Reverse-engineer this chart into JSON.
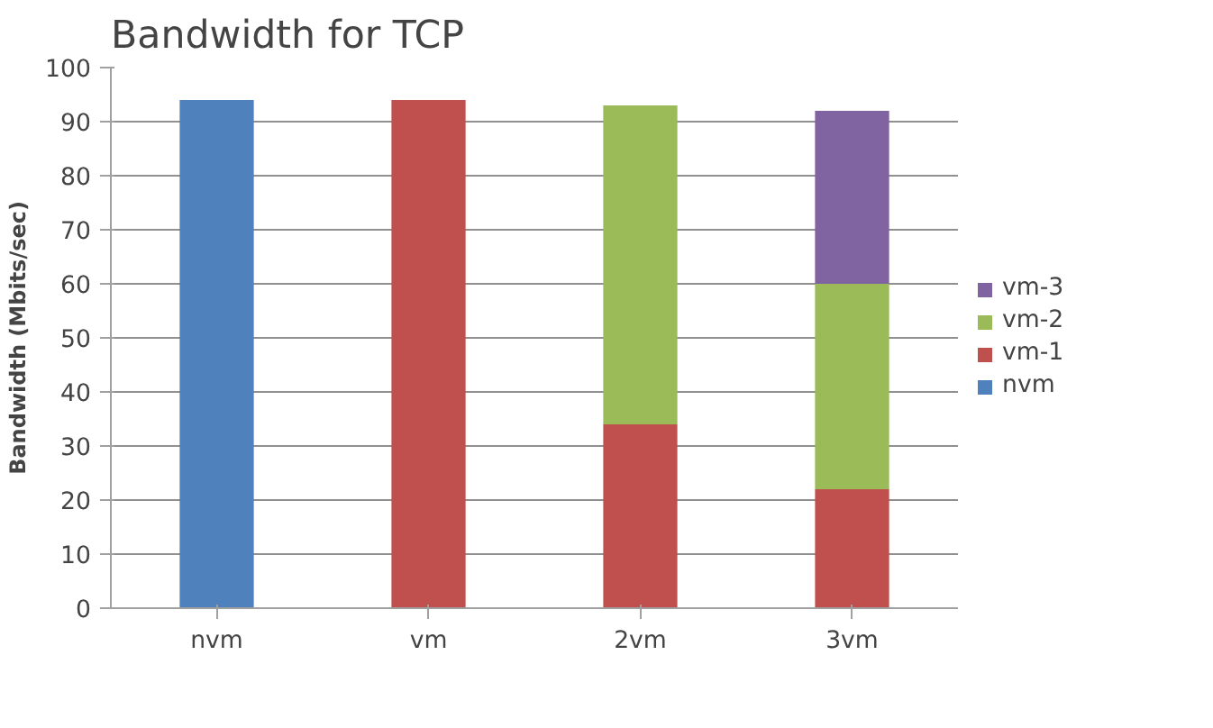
{
  "chart_data": {
    "type": "bar",
    "title": "Bandwidth for TCP",
    "ylabel": "Bandwidth (Mbits/sec)",
    "categories": [
      "nvm",
      "vm",
      "2vm",
      "3vm"
    ],
    "stacked": true,
    "series": [
      {
        "name": "nvm",
        "color": "#4f81bd",
        "values": [
          94,
          null,
          null,
          null
        ]
      },
      {
        "name": "vm-1",
        "color": "#c0504d",
        "values": [
          null,
          94,
          34,
          22
        ]
      },
      {
        "name": "vm-2",
        "color": "#9bbb59",
        "values": [
          null,
          null,
          59,
          38
        ]
      },
      {
        "name": "vm-3",
        "color": "#8064a2",
        "values": [
          null,
          null,
          null,
          32
        ]
      }
    ],
    "ylim": [
      0,
      100
    ],
    "yticks": [
      0,
      10,
      20,
      30,
      40,
      50,
      60,
      70,
      80,
      90,
      100
    ],
    "grid": "y",
    "legend": "right"
  }
}
